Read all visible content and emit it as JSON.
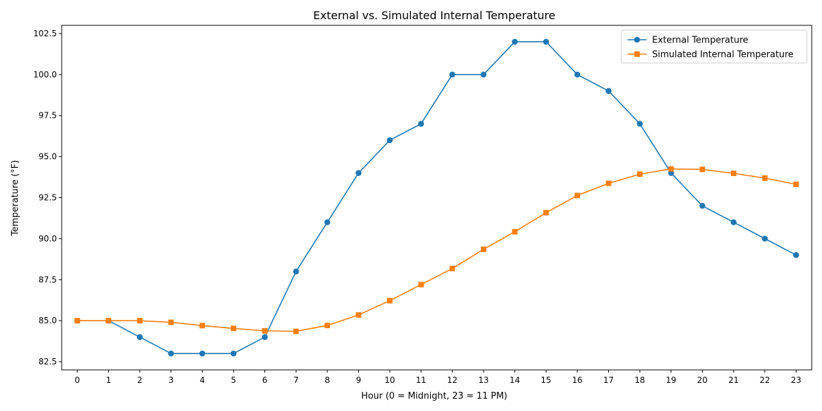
{
  "chart_data": {
    "type": "line",
    "title": "External vs. Simulated Internal Temperature",
    "xlabel": "Hour (0 = Midnight, 23 = 11 PM)",
    "ylabel": "Temperature (°F)",
    "x": [
      0,
      1,
      2,
      3,
      4,
      5,
      6,
      7,
      8,
      9,
      10,
      11,
      12,
      13,
      14,
      15,
      16,
      17,
      18,
      19,
      20,
      21,
      22,
      23
    ],
    "x_tick_labels": [
      "0",
      "1",
      "2",
      "3",
      "4",
      "5",
      "6",
      "7",
      "8",
      "9",
      "10",
      "11",
      "12",
      "13",
      "14",
      "15",
      "16",
      "17",
      "18",
      "19",
      "20",
      "21",
      "22",
      "23"
    ],
    "ylim": [
      82.0,
      103.0
    ],
    "y_ticks": [
      82.5,
      85.0,
      87.5,
      90.0,
      92.5,
      95.0,
      97.5,
      100.0,
      102.5
    ],
    "y_tick_labels": [
      "82.5",
      "85.0",
      "87.5",
      "90.0",
      "92.5",
      "95.0",
      "97.5",
      "100.0",
      "102.5"
    ],
    "grid": false,
    "legend_position": "top-right",
    "series": [
      {
        "name": "External Temperature",
        "color": "#1f77b4",
        "marker": "circle",
        "values": [
          85,
          85,
          84,
          83,
          83,
          83,
          84,
          88,
          91,
          94,
          96,
          97,
          100,
          100,
          102,
          102,
          100,
          99,
          97,
          94,
          92,
          91,
          90,
          89
        ]
      },
      {
        "name": "Simulated Internal Temperature",
        "color": "#ff7f0e",
        "marker": "square",
        "values": [
          85.0,
          85.0,
          85.0,
          84.9,
          84.7,
          84.53,
          84.38,
          84.35,
          84.71,
          85.35,
          86.22,
          87.2,
          88.18,
          89.35,
          90.42,
          91.58,
          92.63,
          93.37,
          93.93,
          94.25,
          94.22,
          93.98,
          93.69,
          93.31
        ]
      }
    ]
  }
}
